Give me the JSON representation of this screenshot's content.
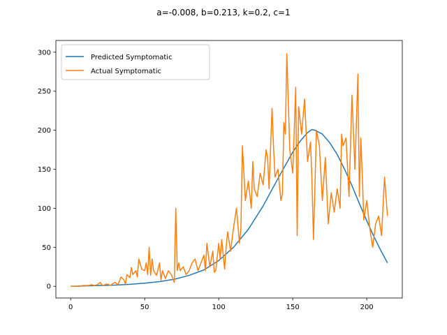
{
  "chart_data": {
    "type": "line",
    "title": "a=-0.008, b=0.213, k=0.2, c=1",
    "xlabel": "",
    "ylabel": "",
    "xlim": [
      -10,
      224
    ],
    "ylim": [
      -15,
      315
    ],
    "xticks": [
      0,
      50,
      100,
      150,
      200
    ],
    "yticks": [
      0,
      50,
      100,
      150,
      200,
      250,
      300
    ],
    "grid": false,
    "legend_position": "upper-left",
    "series": [
      {
        "name": "Predicted Symptomatic",
        "color": "#1f77b4",
        "x": [
          0,
          10,
          20,
          30,
          40,
          50,
          60,
          70,
          80,
          90,
          100,
          110,
          120,
          130,
          140,
          150,
          155,
          160,
          163,
          165,
          170,
          175,
          180,
          185,
          190,
          195,
          200,
          205,
          210,
          214
        ],
        "y": [
          0,
          0.5,
          1,
          1.5,
          2.5,
          4,
          6,
          9,
          14,
          21,
          33,
          50,
          73,
          103,
          138,
          172,
          186,
          197,
          201,
          200,
          195,
          184,
          169,
          150,
          129,
          106,
          84,
          63,
          44,
          30
        ]
      },
      {
        "name": "Actual Symptomatic",
        "color": "#ff7f0e",
        "x": [
          0,
          2,
          4,
          6,
          8,
          10,
          12,
          14,
          16,
          18,
          20,
          21,
          22,
          24,
          26,
          27,
          28,
          30,
          32,
          34,
          36,
          37,
          38,
          40,
          41,
          42,
          44,
          45,
          46,
          48,
          50,
          51,
          52,
          53,
          54,
          55,
          56,
          58,
          60,
          61,
          62,
          63,
          64,
          65,
          66,
          68,
          70,
          71,
          72,
          73,
          74,
          76,
          78,
          80,
          82,
          84,
          86,
          88,
          90,
          91,
          92,
          94,
          96,
          97,
          98,
          100,
          101,
          102,
          104,
          105,
          106,
          108,
          110,
          112,
          114,
          115,
          116,
          118,
          120,
          122,
          123,
          124,
          126,
          128,
          130,
          132,
          133,
          134,
          136,
          137,
          138,
          140,
          142,
          143,
          144,
          145,
          146,
          148,
          150,
          152,
          153,
          154,
          156,
          158,
          160,
          162,
          163,
          164,
          166,
          168,
          170,
          172,
          174,
          176,
          178,
          180,
          182,
          183,
          184,
          186,
          188,
          190,
          192,
          194,
          195,
          196,
          197,
          198,
          200,
          202,
          204,
          206,
          208,
          210,
          212,
          214
        ],
        "y": [
          0,
          0,
          0,
          0,
          1,
          1,
          1,
          2,
          1,
          2,
          5,
          2,
          1,
          3,
          2,
          1,
          3,
          5,
          2,
          12,
          8,
          3,
          15,
          11,
          24,
          15,
          20,
          12,
          35,
          22,
          20,
          30,
          15,
          50,
          14,
          35,
          20,
          14,
          30,
          8,
          20,
          15,
          10,
          15,
          20,
          15,
          5,
          100,
          20,
          30,
          20,
          25,
          15,
          20,
          30,
          35,
          20,
          30,
          40,
          20,
          55,
          25,
          45,
          18,
          20,
          55,
          35,
          60,
          22,
          50,
          70,
          45,
          75,
          100,
          55,
          75,
          180,
          110,
          135,
          100,
          160,
          125,
          115,
          145,
          130,
          175,
          165,
          125,
          228,
          180,
          140,
          150,
          110,
          118,
          210,
          195,
          298,
          175,
          145,
          255,
          65,
          230,
          195,
          240,
          160,
          185,
          135,
          60,
          200,
          180,
          110,
          165,
          80,
          120,
          95,
          125,
          100,
          195,
          180,
          190,
          115,
          245,
          150,
          272,
          115,
          190,
          140,
          85,
          110,
          75,
          50,
          80,
          90,
          65,
          140,
          90
        ]
      }
    ]
  }
}
